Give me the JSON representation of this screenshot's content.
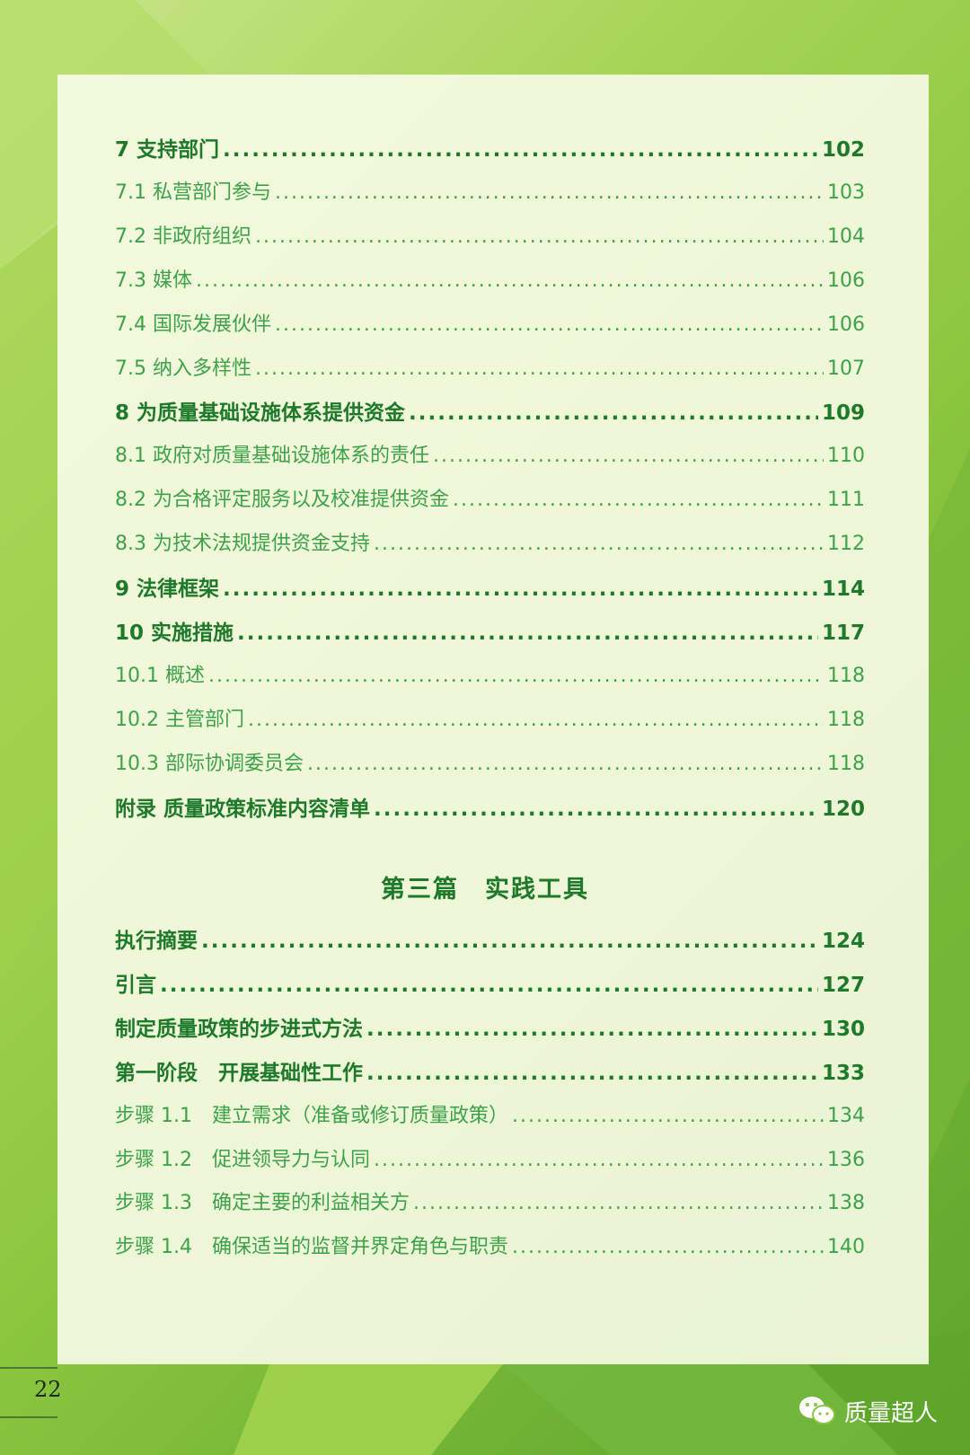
{
  "toc": [
    {
      "label": "7  支持部门",
      "page": "102",
      "level": "major"
    },
    {
      "label": "7.1  私营部门参与",
      "page": "103",
      "level": "minor"
    },
    {
      "label": "7.2  非政府组织",
      "page": "104",
      "level": "minor"
    },
    {
      "label": "7.3  媒体",
      "page": "106",
      "level": "minor"
    },
    {
      "label": "7.4  国际发展伙伴",
      "page": "106",
      "level": "minor"
    },
    {
      "label": "7.5  纳入多样性",
      "page": "107",
      "level": "minor"
    },
    {
      "label": "8  为质量基础设施体系提供资金",
      "page": "109",
      "level": "major"
    },
    {
      "label": "8.1  政府对质量基础设施体系的责任",
      "page": "110",
      "level": "minor"
    },
    {
      "label": "8.2  为合格评定服务以及校准提供资金",
      "page": "111",
      "level": "minor"
    },
    {
      "label": "8.3  为技术法规提供资金支持",
      "page": "112",
      "level": "minor"
    },
    {
      "label": "9  法律框架",
      "page": "114",
      "level": "major"
    },
    {
      "label": "10  实施措施",
      "page": "117",
      "level": "major"
    },
    {
      "label": "10.1  概述",
      "page": "118",
      "level": "minor"
    },
    {
      "label": "10.2  主管部门",
      "page": "118",
      "level": "minor"
    },
    {
      "label": "10.3  部际协调委员会",
      "page": "118",
      "level": "minor"
    },
    {
      "label": "附录  质量政策标准内容清单",
      "page": "120",
      "level": "major"
    }
  ],
  "section_heading": "第三篇　实践工具",
  "toc2": [
    {
      "label": "执行摘要",
      "page": "124",
      "level": "major"
    },
    {
      "label": "引言",
      "page": "127",
      "level": "major"
    },
    {
      "label": "制定质量政策的步进式方法",
      "page": "130",
      "level": "major"
    },
    {
      "label": "第一阶段　开展基础性工作",
      "page": "133",
      "level": "major"
    },
    {
      "label": "步骤 1.1　建立需求（准备或修订质量政策）",
      "page": "134",
      "level": "minor"
    },
    {
      "label": "步骤 1.2　促进领导力与认同",
      "page": "136",
      "level": "minor"
    },
    {
      "label": "步骤 1.3　确定主要的利益相关方",
      "page": "138",
      "level": "minor"
    },
    {
      "label": "步骤 1.4　确保适当的监督并界定角色与职责",
      "page": "140",
      "level": "minor"
    }
  ],
  "page_number": "22",
  "watermark": "质量超人",
  "colors": {
    "major": "#1e7a2a",
    "minor": "#3ea24a",
    "background": "#8cc63f"
  }
}
